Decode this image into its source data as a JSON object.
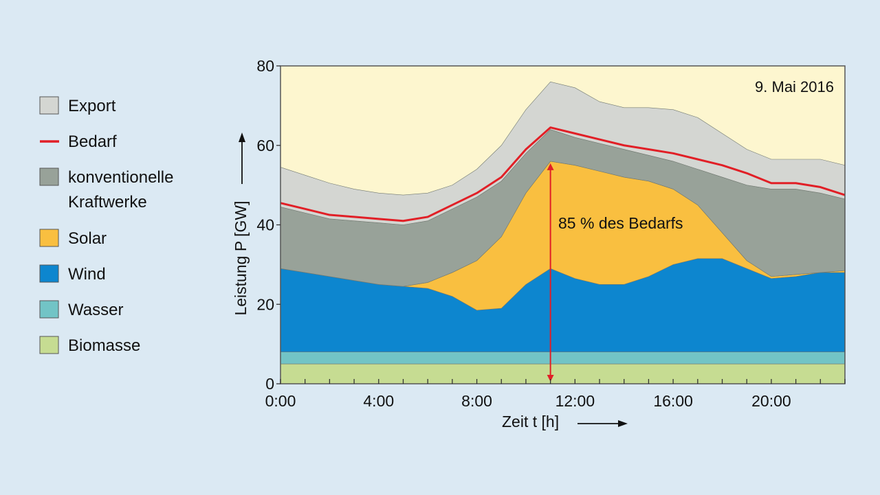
{
  "chart_data": {
    "type": "area",
    "title": "",
    "annotation_date": "9. Mai 2016",
    "annotation_share": "85 % des Bedarfs",
    "xlabel": "Zeit t [h]",
    "ylabel": "Leistung P [GW]",
    "xlim": [
      0,
      23
    ],
    "ylim": [
      0,
      80
    ],
    "x_ticks": [
      0,
      4,
      8,
      12,
      16,
      20
    ],
    "x_tick_labels": [
      "0:00",
      "4:00",
      "8:00",
      "12:00",
      "16:00",
      "20:00"
    ],
    "y_ticks": [
      0,
      20,
      40,
      60,
      80
    ],
    "y_tick_labels": [
      "0",
      "20",
      "40",
      "60",
      "80"
    ],
    "grid": false,
    "legend_position": "left",
    "x": [
      0,
      1,
      2,
      3,
      4,
      5,
      6,
      7,
      8,
      9,
      10,
      11,
      12,
      13,
      14,
      15,
      16,
      17,
      18,
      19,
      20,
      21,
      22,
      23
    ],
    "layers": [
      {
        "name": "Biomasse",
        "color": "#c6dc92",
        "top": [
          5,
          5,
          5,
          5,
          5,
          5,
          5,
          5,
          5,
          5,
          5,
          5,
          5,
          5,
          5,
          5,
          5,
          5,
          5,
          5,
          5,
          5,
          5,
          5
        ]
      },
      {
        "name": "Wasser",
        "color": "#72c4c6",
        "top": [
          8,
          8,
          8,
          8,
          8,
          8,
          8,
          8,
          8,
          8,
          8,
          8,
          8,
          8,
          8,
          8,
          8,
          8,
          8,
          8,
          8,
          8,
          8,
          8
        ]
      },
      {
        "name": "Wind",
        "color": "#0d86cf",
        "top": [
          29,
          28,
          27,
          26,
          25,
          24.5,
          24,
          22,
          18.5,
          19,
          25,
          29,
          26.5,
          25,
          25,
          27,
          30,
          31.5,
          31.5,
          29,
          26.5,
          27,
          28,
          28
        ]
      },
      {
        "name": "Solar",
        "color": "#f9bf40",
        "top": [
          29,
          28,
          27,
          26,
          25,
          24.5,
          25.5,
          28,
          31,
          37,
          48,
          56,
          55,
          53.5,
          52,
          51,
          49,
          45,
          38,
          31,
          27,
          27.5,
          28,
          28.5
        ]
      },
      {
        "name": "konventionelle Kraftwerke",
        "color": "#98a299",
        "top": [
          44.5,
          43,
          41.5,
          41,
          40.5,
          40,
          41,
          44,
          47,
          51,
          58,
          64,
          62,
          60.5,
          59,
          57.5,
          56,
          54,
          52,
          50,
          49,
          49,
          48,
          46.5
        ]
      },
      {
        "name": "Export",
        "color": "#d4d6d2",
        "top": [
          54.5,
          52.5,
          50.5,
          49,
          48,
          47.5,
          48,
          50,
          54,
          60,
          69,
          76,
          74.5,
          71,
          69.5,
          69.5,
          69,
          67,
          63,
          59,
          56.5,
          56.5,
          56.5,
          55
        ]
      }
    ],
    "series": [
      {
        "name": "Bedarf",
        "color": "#e11f26",
        "values": [
          45.5,
          44,
          42.5,
          42,
          41.5,
          41,
          42,
          45,
          48,
          52,
          59,
          64.5,
          63,
          61.5,
          60,
          59,
          58,
          56.5,
          55,
          53,
          50.5,
          50.5,
          49.5,
          47.5
        ]
      }
    ],
    "legend": [
      {
        "label": "Export",
        "kind": "box",
        "color": "#d4d6d2"
      },
      {
        "label": "Bedarf",
        "kind": "line",
        "color": "#e11f26"
      },
      {
        "label": "konventionelle\nKraftwerke",
        "kind": "box",
        "color": "#98a299"
      },
      {
        "label": "Solar",
        "kind": "box",
        "color": "#f9bf40"
      },
      {
        "label": "Wind",
        "kind": "box",
        "color": "#0d86cf"
      },
      {
        "label": "Wasser",
        "kind": "box",
        "color": "#72c4c6"
      },
      {
        "label": "Biomasse",
        "kind": "box",
        "color": "#c6dc92"
      }
    ],
    "share_marker_x": 11,
    "colors": {
      "plot_background": "#fdf6cf",
      "page_background": "#dbe9f3",
      "annotation": "#e11f26"
    }
  }
}
